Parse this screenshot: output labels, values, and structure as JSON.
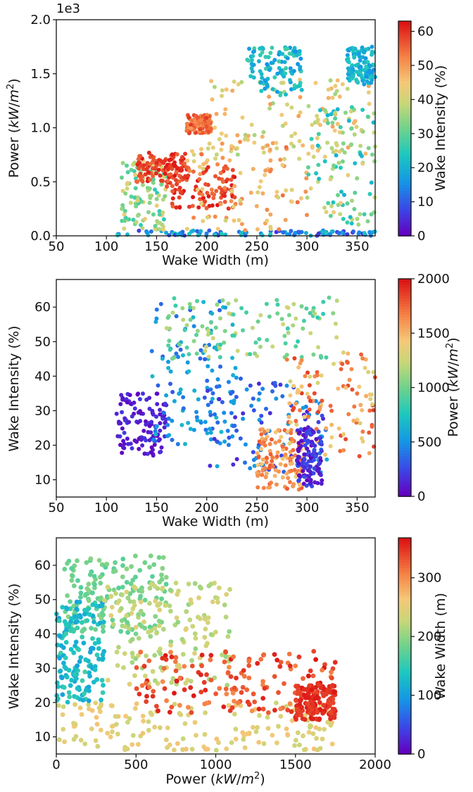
{
  "chart_data": [
    {
      "type": "scatter",
      "panel": "top",
      "xlabel": "Wake Width (m)",
      "ylabel_parts": [
        "Power (",
        "kW",
        "/",
        "m",
        "2",
        ")"
      ],
      "xlim": [
        50,
        368
      ],
      "ylim": [
        0,
        2.0
      ],
      "xticks": [
        "50",
        "100",
        "150",
        "200",
        "250",
        "300",
        "350"
      ],
      "yticks": [
        "0.0",
        "0.5",
        "1.0",
        "1.5",
        "2.0"
      ],
      "offset_label": "1e3",
      "colorbar": {
        "label": "Wake Intensity (%)",
        "range": [
          0,
          63
        ],
        "ticks": [
          "0",
          "10",
          "20",
          "30",
          "40",
          "50",
          "60"
        ]
      },
      "regions": [
        {
          "x": [
            110,
            370
          ],
          "y": [
            0.0,
            0.05
          ],
          "c": [
            5,
            25
          ]
        },
        {
          "x": [
            115,
            160
          ],
          "y": [
            0.05,
            0.7
          ],
          "c": [
            25,
            45
          ]
        },
        {
          "x": [
            130,
            180
          ],
          "y": [
            0.5,
            0.77
          ],
          "c": [
            55,
            63
          ]
        },
        {
          "x": [
            160,
            230
          ],
          "y": [
            0.25,
            0.65
          ],
          "c": [
            55,
            63
          ]
        },
        {
          "x": [
            180,
            300
          ],
          "y": [
            0.05,
            0.9
          ],
          "c": [
            40,
            55
          ]
        },
        {
          "x": [
            180,
            205
          ],
          "y": [
            0.95,
            1.12
          ],
          "c": [
            50,
            60
          ]
        },
        {
          "x": [
            200,
            370
          ],
          "y": [
            0.75,
            1.45
          ],
          "c": [
            35,
            50
          ]
        },
        {
          "x": [
            240,
            295
          ],
          "y": [
            1.3,
            1.75
          ],
          "c": [
            15,
            28
          ]
        },
        {
          "x": [
            300,
            370
          ],
          "y": [
            0.1,
            1.2
          ],
          "c": [
            20,
            45
          ]
        },
        {
          "x": [
            340,
            368
          ],
          "y": [
            1.4,
            1.75
          ],
          "c": [
            15,
            25
          ]
        }
      ]
    },
    {
      "type": "scatter",
      "panel": "middle",
      "xlabel": "Wake Width (m)",
      "ylabel": "Wake Intensity (%)",
      "xlim": [
        50,
        368
      ],
      "ylim": [
        5,
        68
      ],
      "xticks": [
        "50",
        "100",
        "150",
        "200",
        "250",
        "300",
        "350"
      ],
      "yticks": [
        "10",
        "20",
        "30",
        "40",
        "50",
        "60"
      ],
      "colorbar": {
        "label_parts": [
          "Power (",
          "kW",
          "/",
          "m",
          "2",
          ")"
        ],
        "range": [
          0,
          2000
        ],
        "ticks": [
          "0",
          "500",
          "1000",
          "1500",
          "2000"
        ]
      },
      "regions": [
        {
          "x": [
            110,
            160
          ],
          "y": [
            17,
            35
          ],
          "c": [
            0,
            200
          ]
        },
        {
          "x": [
            145,
            230
          ],
          "y": [
            20,
            62
          ],
          "c": [
            300,
            700
          ]
        },
        {
          "x": [
            160,
            330
          ],
          "y": [
            45,
            63
          ],
          "c": [
            800,
            1300
          ]
        },
        {
          "x": [
            200,
            320
          ],
          "y": [
            12,
            40
          ],
          "c": [
            100,
            600
          ]
        },
        {
          "x": [
            250,
            300
          ],
          "y": [
            7,
            25
          ],
          "c": [
            1400,
            1800
          ]
        },
        {
          "x": [
            280,
            368
          ],
          "y": [
            16,
            47
          ],
          "c": [
            1300,
            1900
          ]
        },
        {
          "x": [
            290,
            315
          ],
          "y": [
            8,
            25
          ],
          "c": [
            0,
            300
          ]
        }
      ]
    },
    {
      "type": "scatter",
      "panel": "bottom",
      "xlabel_parts": [
        "Power (",
        "kW",
        "/",
        "m",
        "2",
        ")"
      ],
      "ylabel": "Wake Intensity (%)",
      "xlim": [
        0,
        2000
      ],
      "ylim": [
        5,
        68
      ],
      "xticks": [
        "0",
        "500",
        "1000",
        "1500",
        "2000"
      ],
      "yticks": [
        "10",
        "20",
        "30",
        "40",
        "50",
        "60"
      ],
      "colorbar": {
        "label": "Wake Width (m)",
        "range": [
          0,
          368
        ],
        "ticks": [
          "0",
          "100",
          "200",
          "300"
        ]
      },
      "regions": [
        {
          "x": [
            0,
            1750
          ],
          "y": [
            6,
            20
          ],
          "c": [
            230,
            270
          ]
        },
        {
          "x": [
            50,
            700
          ],
          "y": [
            40,
            63
          ],
          "c": [
            170,
            200
          ]
        },
        {
          "x": [
            0,
            300
          ],
          "y": [
            20,
            50
          ],
          "c": [
            100,
            160
          ]
        },
        {
          "x": [
            300,
            1100
          ],
          "y": [
            25,
            55
          ],
          "c": [
            200,
            250
          ]
        },
        {
          "x": [
            500,
            1750
          ],
          "y": [
            17,
            35
          ],
          "c": [
            300,
            368
          ]
        },
        {
          "x": [
            1500,
            1750
          ],
          "y": [
            15,
            25
          ],
          "c": [
            340,
            368
          ]
        }
      ]
    }
  ]
}
